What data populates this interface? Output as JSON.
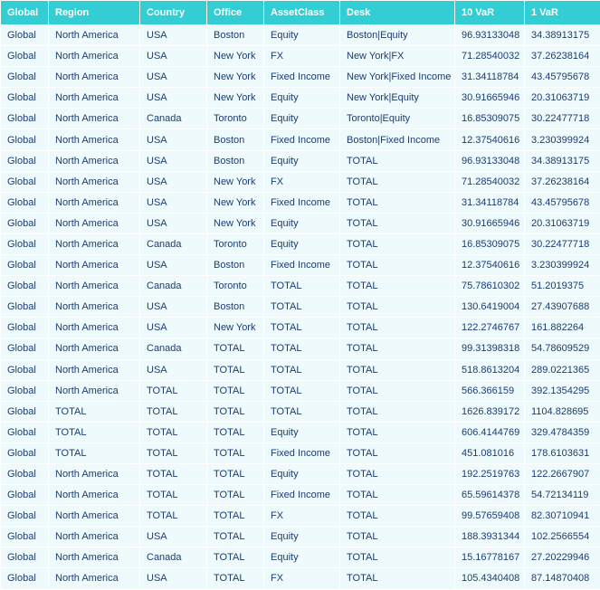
{
  "table": {
    "columns": [
      "Global",
      "Region",
      "Country",
      "Office",
      "AssetClass",
      "Desk",
      "10 VaR",
      "1 VaR"
    ],
    "rows": [
      [
        "Global",
        "North America",
        "USA",
        "Boston",
        "Equity",
        "Boston|Equity",
        "96.93133048",
        "34.38913175"
      ],
      [
        "Global",
        "North America",
        "USA",
        "New York",
        "FX",
        "New York|FX",
        "71.28540032",
        "37.26238164"
      ],
      [
        "Global",
        "North America",
        "USA",
        "New York",
        "Fixed Income",
        "New York|Fixed Income",
        "31.34118784",
        "43.45795678"
      ],
      [
        "Global",
        "North America",
        "USA",
        "New York",
        "Equity",
        "New York|Equity",
        "30.91665946",
        "20.31063719"
      ],
      [
        "Global",
        "North America",
        "Canada",
        "Toronto",
        "Equity",
        "Toronto|Equity",
        "16.85309075",
        "30.22477718"
      ],
      [
        "Global",
        "North America",
        "USA",
        "Boston",
        "Fixed Income",
        "Boston|Fixed Income",
        "12.37540616",
        "3.230399924"
      ],
      [
        "Global",
        "North America",
        "USA",
        "Boston",
        "Equity",
        "TOTAL",
        "96.93133048",
        "34.38913175"
      ],
      [
        "Global",
        "North America",
        "USA",
        "New York",
        "FX",
        "TOTAL",
        "71.28540032",
        "37.26238164"
      ],
      [
        "Global",
        "North America",
        "USA",
        "New York",
        "Fixed Income",
        "TOTAL",
        "31.34118784",
        "43.45795678"
      ],
      [
        "Global",
        "North America",
        "USA",
        "New York",
        "Equity",
        "TOTAL",
        "30.91665946",
        "20.31063719"
      ],
      [
        "Global",
        "North America",
        "Canada",
        "Toronto",
        "Equity",
        "TOTAL",
        "16.85309075",
        "30.22477718"
      ],
      [
        "Global",
        "North America",
        "USA",
        "Boston",
        "Fixed Income",
        "TOTAL",
        "12.37540616",
        "3.230399924"
      ],
      [
        "Global",
        "North America",
        "Canada",
        "Toronto",
        "TOTAL",
        "TOTAL",
        "75.78610302",
        "51.2019375"
      ],
      [
        "Global",
        "North America",
        "USA",
        "Boston",
        "TOTAL",
        "TOTAL",
        "130.6419004",
        "27.43907688"
      ],
      [
        "Global",
        "North America",
        "USA",
        "New York",
        "TOTAL",
        "TOTAL",
        "122.2746767",
        "161.882264"
      ],
      [
        "Global",
        "North America",
        "Canada",
        "TOTAL",
        "TOTAL",
        "TOTAL",
        "99.31398318",
        "54.78609529"
      ],
      [
        "Global",
        "North America",
        "USA",
        "TOTAL",
        "TOTAL",
        "TOTAL",
        "518.8613204",
        "289.0221365"
      ],
      [
        "Global",
        "North America",
        "TOTAL",
        "TOTAL",
        "TOTAL",
        "TOTAL",
        "566.366159",
        "392.1354295"
      ],
      [
        "Global",
        "TOTAL",
        "TOTAL",
        "TOTAL",
        "TOTAL",
        "TOTAL",
        "1626.839172",
        "1104.828695"
      ],
      [
        "Global",
        "TOTAL",
        "TOTAL",
        "TOTAL",
        "Equity",
        "TOTAL",
        "606.4144769",
        "329.4784359"
      ],
      [
        "Global",
        "TOTAL",
        "TOTAL",
        "TOTAL",
        "Fixed Income",
        "TOTAL",
        "451.081016",
        "178.6103631"
      ],
      [
        "Global",
        "North America",
        "TOTAL",
        "TOTAL",
        "Equity",
        "TOTAL",
        "192.2519763",
        "122.2667907"
      ],
      [
        "Global",
        "North America",
        "TOTAL",
        "TOTAL",
        "Fixed Income",
        "TOTAL",
        "65.59614378",
        "54.72134119"
      ],
      [
        "Global",
        "North America",
        "TOTAL",
        "TOTAL",
        "FX",
        "TOTAL",
        "99.57659408",
        "82.30710941"
      ],
      [
        "Global",
        "North America",
        "USA",
        "TOTAL",
        "Equity",
        "TOTAL",
        "188.3931344",
        "102.2566554"
      ],
      [
        "Global",
        "North America",
        "Canada",
        "TOTAL",
        "Equity",
        "TOTAL",
        "15.16778167",
        "27.20229946"
      ],
      [
        "Global",
        "North America",
        "USA",
        "TOTAL",
        "FX",
        "TOTAL",
        "105.4340408",
        "87.14870408"
      ]
    ]
  }
}
